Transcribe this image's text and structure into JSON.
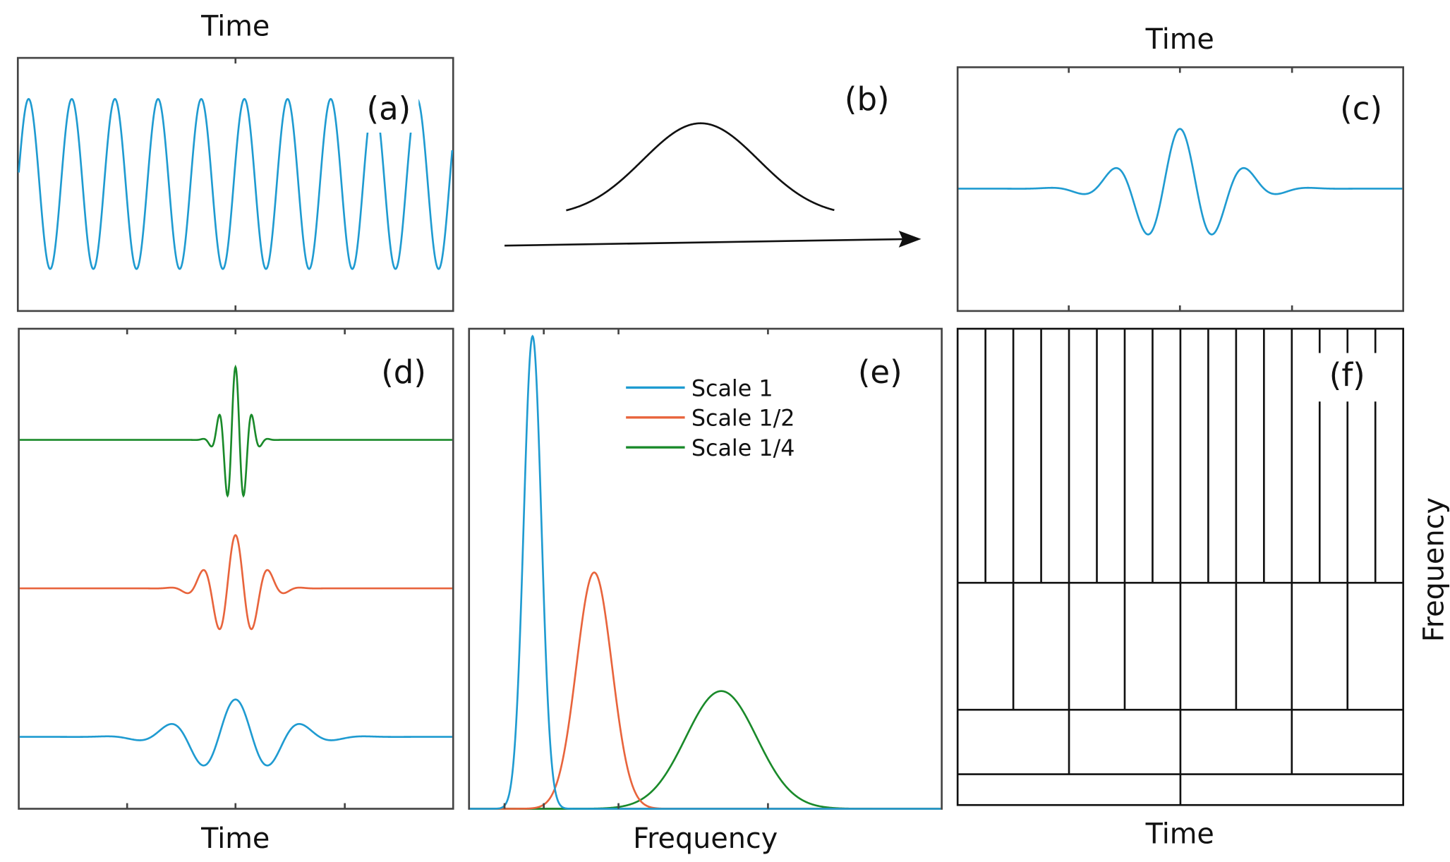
{
  "colors": {
    "scale1": "#1f9bd1",
    "scale_half": "#e8643c",
    "scale_quarter": "#1a8a2a",
    "axis": "#444444",
    "ink": "#111111"
  },
  "panels": {
    "a": {
      "label": "(a)",
      "axis_title": "Time"
    },
    "b": {
      "label": "(b)"
    },
    "c": {
      "label": "(c)",
      "axis_title": "Time"
    },
    "d": {
      "label": "(d)",
      "axis_title": "Time"
    },
    "e": {
      "label": "(e)",
      "axis_title": "Frequency",
      "legend": [
        {
          "name": "Scale 1"
        },
        {
          "name": "Scale 1/2"
        },
        {
          "name": "Scale 1/4"
        }
      ]
    },
    "f": {
      "label": "(f)",
      "xlabel": "Time",
      "ylabel": "Frequency",
      "tiling_columns_per_band": [
        16,
        8,
        4,
        2
      ]
    }
  }
}
